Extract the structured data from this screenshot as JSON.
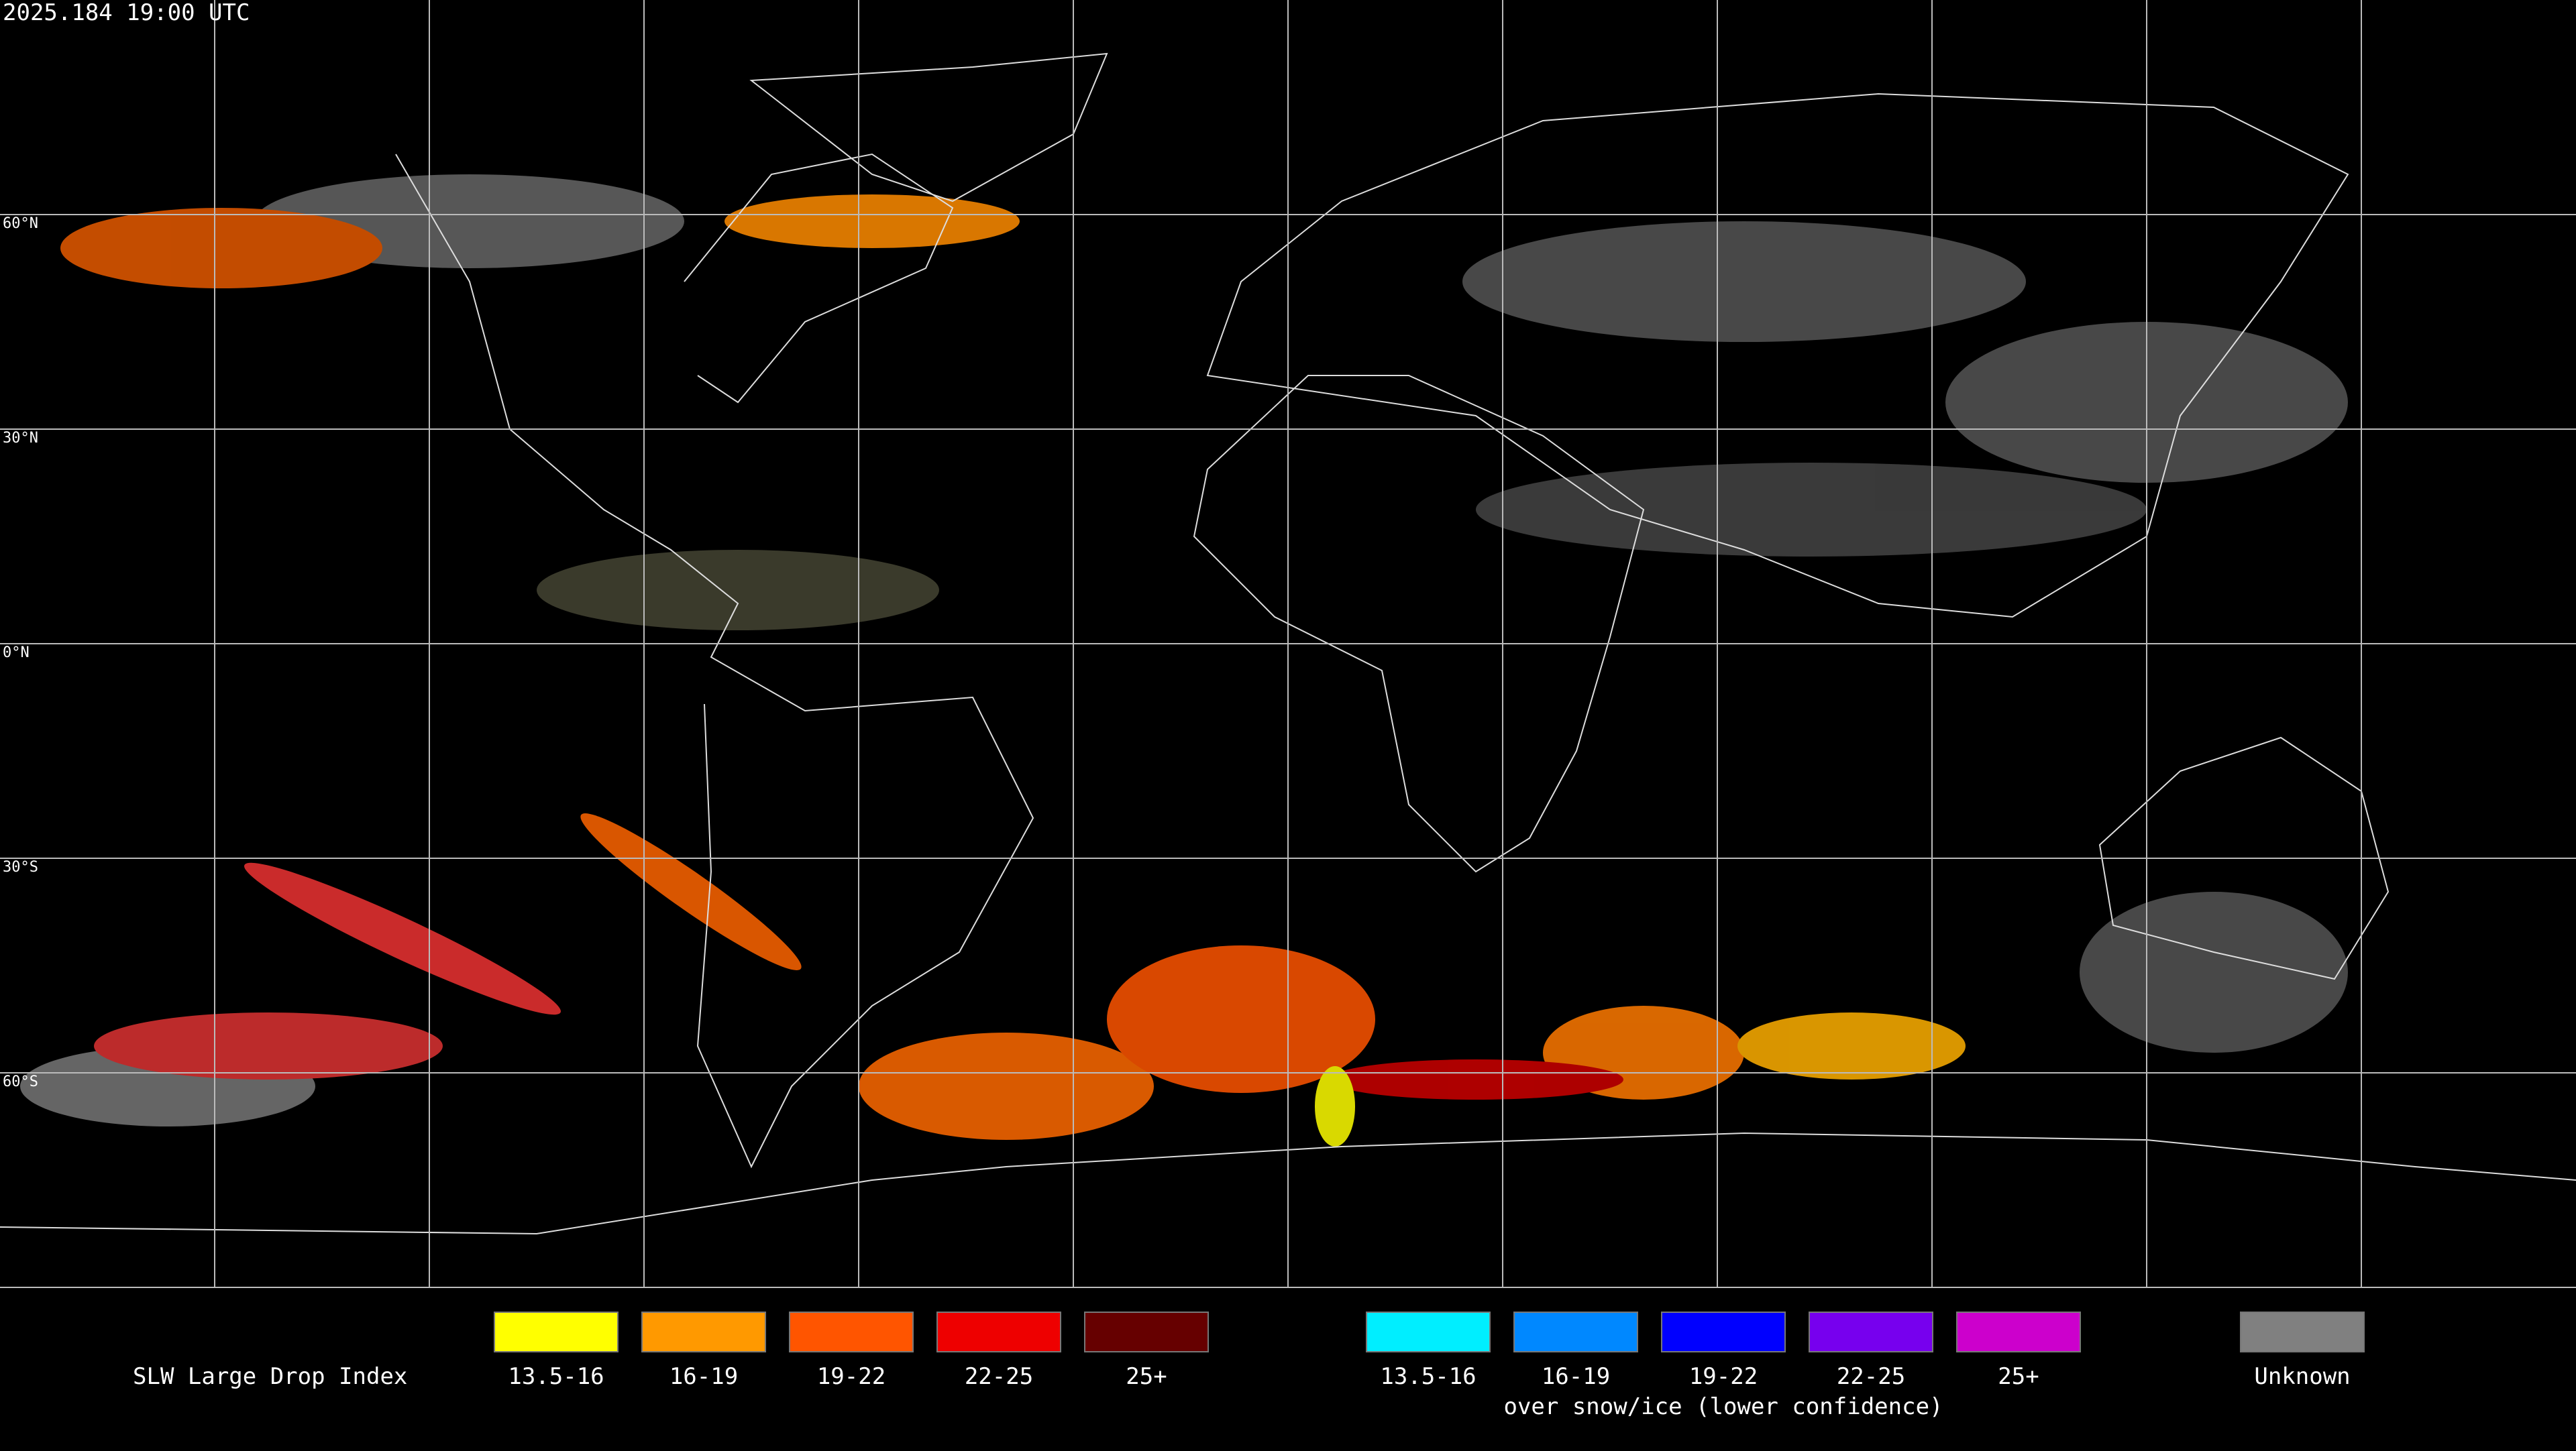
{
  "header": {
    "timestamp": "2025.184 19:00 UTC"
  },
  "map": {
    "latitude_labels": [
      "60°N",
      "30°N",
      "0°N",
      "30°S",
      "60°S"
    ]
  },
  "legend": {
    "title": "SLW Large Drop Index",
    "groups": [
      {
        "items": [
          {
            "label": "13.5-16",
            "color": "#ffff00"
          },
          {
            "label": "16-19",
            "color": "#ff9900"
          },
          {
            "label": "19-22",
            "color": "#ff5500"
          },
          {
            "label": "22-25",
            "color": "#ee0000"
          },
          {
            "label": "25+",
            "color": "#660000"
          }
        ]
      },
      {
        "subtitle": "over snow/ice (lower confidence)",
        "items": [
          {
            "label": "13.5-16",
            "color": "#00eeff"
          },
          {
            "label": "16-19",
            "color": "#0088ff"
          },
          {
            "label": "19-22",
            "color": "#0000ff"
          },
          {
            "label": "22-25",
            "color": "#7700ee"
          },
          {
            "label": "25+",
            "color": "#cc00cc"
          }
        ]
      },
      {
        "items": [
          {
            "label": "Unknown",
            "color": "#808080"
          }
        ]
      }
    ]
  }
}
